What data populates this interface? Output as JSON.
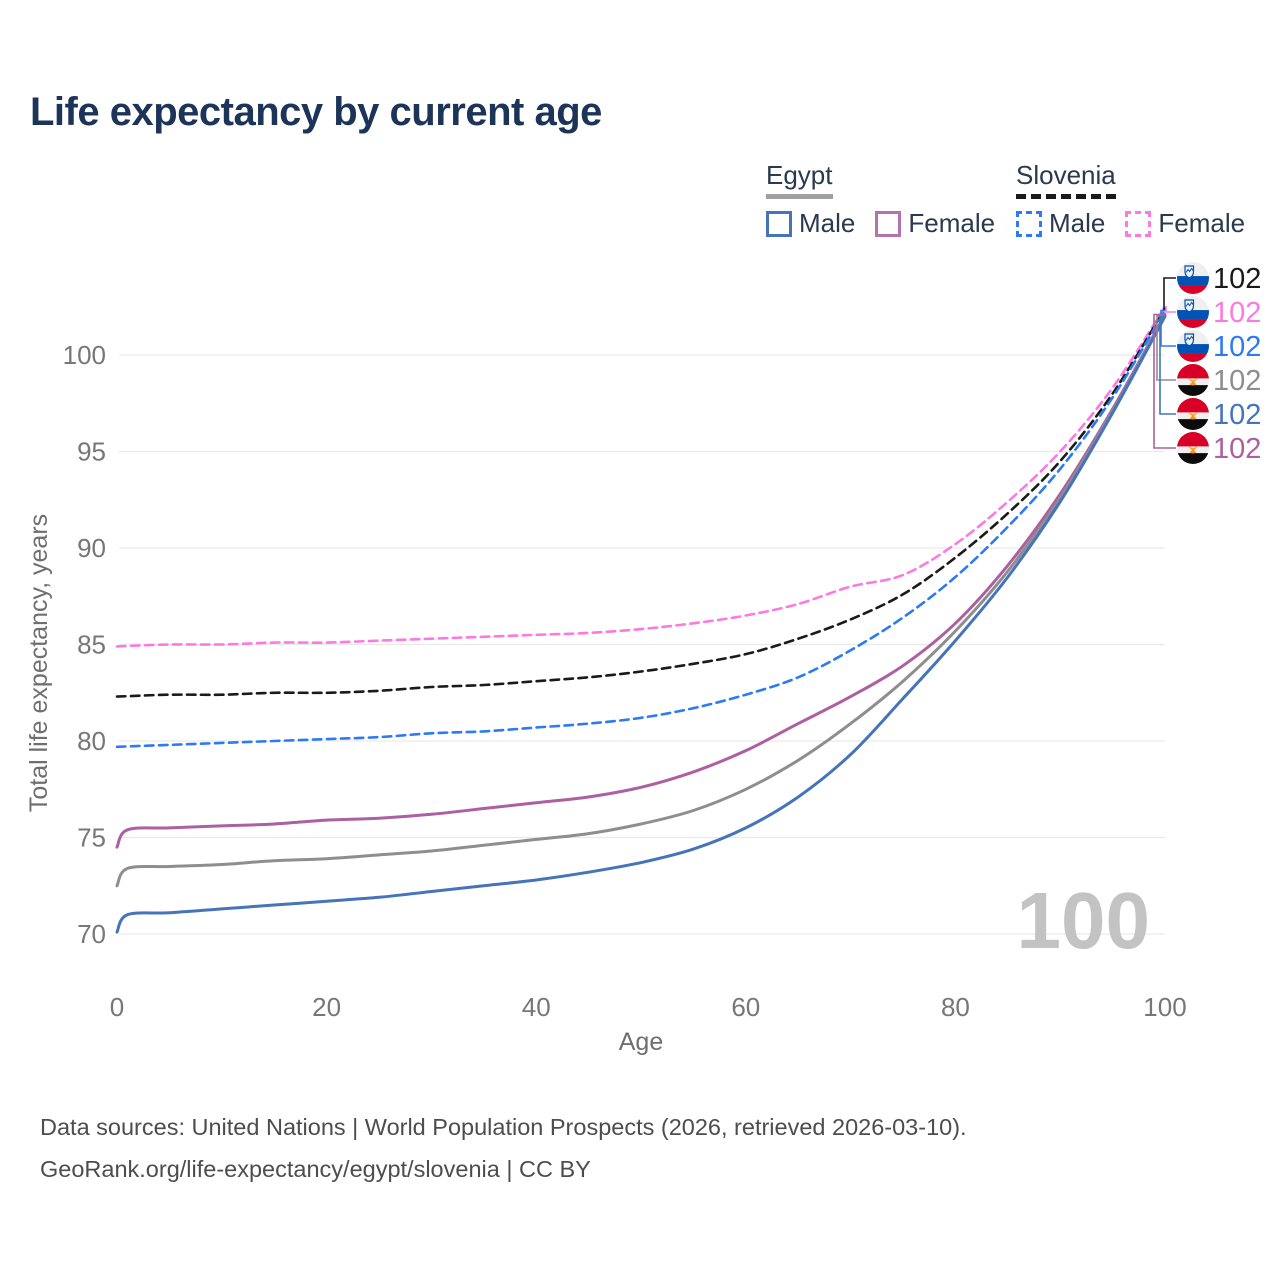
{
  "title": "Life expectancy by current age",
  "legend": {
    "groups": [
      {
        "country": "Egypt",
        "line_style": "solid",
        "series_color": "#a0a0a0",
        "items": [
          {
            "label": "Male",
            "color": "#4674ba",
            "style": "solid"
          },
          {
            "label": "Female",
            "color": "#b473ae",
            "style": "solid"
          }
        ]
      },
      {
        "country": "Slovenia",
        "line_style": "dashed",
        "series_color": "#1a1a1a",
        "items": [
          {
            "label": "Male",
            "color": "#2d7af5",
            "style": "dashed"
          },
          {
            "label": "Female",
            "color": "#fc7ae0",
            "style": "dashed"
          }
        ]
      }
    ]
  },
  "axes": {
    "y": {
      "title": "Total life expectancy, years",
      "ticks": [
        70,
        75,
        80,
        85,
        90,
        95,
        100
      ]
    },
    "x": {
      "title": "Age",
      "ticks": [
        0,
        20,
        40,
        60,
        80,
        100
      ]
    }
  },
  "watermark": "100",
  "chart_data": {
    "type": "line",
    "title": "Life expectancy by current age",
    "xlabel": "Age",
    "ylabel": "Total life expectancy, years",
    "xlim": [
      0,
      100
    ],
    "ylim": [
      70,
      103
    ],
    "grid": true,
    "legend_position": "top-right",
    "series": [
      {
        "id": "slovenia_female",
        "name": "Slovenia Female",
        "country": "Slovenia",
        "sex": "female",
        "color": "#fc7ae0",
        "dash": true,
        "points": [
          [
            0,
            84.9
          ],
          [
            5,
            85.0
          ],
          [
            10,
            85.0
          ],
          [
            15,
            85.1
          ],
          [
            20,
            85.1
          ],
          [
            25,
            85.2
          ],
          [
            30,
            85.3
          ],
          [
            35,
            85.4
          ],
          [
            40,
            85.5
          ],
          [
            45,
            85.6
          ],
          [
            50,
            85.8
          ],
          [
            55,
            86.1
          ],
          [
            60,
            86.5
          ],
          [
            65,
            87.1
          ],
          [
            70,
            88.0
          ],
          [
            75,
            88.6
          ],
          [
            80,
            90.2
          ],
          [
            85,
            92.4
          ],
          [
            90,
            95.0
          ],
          [
            95,
            98.3
          ],
          [
            100,
            102.5
          ]
        ]
      },
      {
        "id": "slovenia_total",
        "name": "Slovenia",
        "country": "Slovenia",
        "sex": "both",
        "color": "#1a1a1a",
        "dash": true,
        "points": [
          [
            0,
            82.3
          ],
          [
            5,
            82.4
          ],
          [
            10,
            82.4
          ],
          [
            15,
            82.5
          ],
          [
            20,
            82.5
          ],
          [
            25,
            82.6
          ],
          [
            30,
            82.8
          ],
          [
            35,
            82.9
          ],
          [
            40,
            83.1
          ],
          [
            45,
            83.3
          ],
          [
            50,
            83.6
          ],
          [
            55,
            84.0
          ],
          [
            60,
            84.5
          ],
          [
            65,
            85.3
          ],
          [
            70,
            86.3
          ],
          [
            75,
            87.6
          ],
          [
            80,
            89.5
          ],
          [
            85,
            91.8
          ],
          [
            90,
            94.5
          ],
          [
            95,
            98.0
          ],
          [
            100,
            102.4
          ]
        ]
      },
      {
        "id": "slovenia_male",
        "name": "Slovenia Male",
        "country": "Slovenia",
        "sex": "male",
        "color": "#2d7af5",
        "dash": true,
        "points": [
          [
            0,
            79.7
          ],
          [
            5,
            79.8
          ],
          [
            10,
            79.9
          ],
          [
            15,
            80.0
          ],
          [
            20,
            80.1
          ],
          [
            25,
            80.2
          ],
          [
            30,
            80.4
          ],
          [
            35,
            80.5
          ],
          [
            40,
            80.7
          ],
          [
            45,
            80.9
          ],
          [
            50,
            81.2
          ],
          [
            55,
            81.7
          ],
          [
            60,
            82.4
          ],
          [
            65,
            83.3
          ],
          [
            70,
            84.7
          ],
          [
            75,
            86.4
          ],
          [
            80,
            88.5
          ],
          [
            85,
            91.1
          ],
          [
            90,
            94.1
          ],
          [
            95,
            97.8
          ],
          [
            100,
            102.3
          ]
        ]
      },
      {
        "id": "egypt_female",
        "name": "Egypt Female",
        "country": "Egypt",
        "sex": "female",
        "color": "#ac60a1",
        "dash": false,
        "points": [
          [
            0,
            74.5
          ],
          [
            1,
            75.4
          ],
          [
            5,
            75.5
          ],
          [
            10,
            75.6
          ],
          [
            15,
            75.7
          ],
          [
            20,
            75.9
          ],
          [
            25,
            76.0
          ],
          [
            30,
            76.2
          ],
          [
            35,
            76.5
          ],
          [
            40,
            76.8
          ],
          [
            45,
            77.1
          ],
          [
            50,
            77.6
          ],
          [
            55,
            78.4
          ],
          [
            60,
            79.5
          ],
          [
            65,
            80.9
          ],
          [
            70,
            82.3
          ],
          [
            75,
            83.9
          ],
          [
            80,
            86.1
          ],
          [
            85,
            89.1
          ],
          [
            90,
            92.8
          ],
          [
            95,
            97.2
          ],
          [
            100,
            102.1
          ]
        ]
      },
      {
        "id": "egypt_total",
        "name": "Egypt",
        "country": "Egypt",
        "sex": "both",
        "color": "#8e8e8e",
        "dash": false,
        "points": [
          [
            0,
            72.5
          ],
          [
            1,
            73.4
          ],
          [
            5,
            73.5
          ],
          [
            10,
            73.6
          ],
          [
            15,
            73.8
          ],
          [
            20,
            73.9
          ],
          [
            25,
            74.1
          ],
          [
            30,
            74.3
          ],
          [
            35,
            74.6
          ],
          [
            40,
            74.9
          ],
          [
            45,
            75.2
          ],
          [
            50,
            75.7
          ],
          [
            55,
            76.4
          ],
          [
            60,
            77.5
          ],
          [
            65,
            79.0
          ],
          [
            70,
            80.9
          ],
          [
            75,
            83.1
          ],
          [
            80,
            85.7
          ],
          [
            85,
            88.8
          ],
          [
            90,
            92.6
          ],
          [
            95,
            97.1
          ],
          [
            100,
            102.05
          ]
        ]
      },
      {
        "id": "egypt_male",
        "name": "Egypt Male",
        "country": "Egypt",
        "sex": "male",
        "color": "#4674ba",
        "dash": false,
        "points": [
          [
            0,
            70.1
          ],
          [
            1,
            71.0
          ],
          [
            5,
            71.1
          ],
          [
            10,
            71.3
          ],
          [
            15,
            71.5
          ],
          [
            20,
            71.7
          ],
          [
            25,
            71.9
          ],
          [
            30,
            72.2
          ],
          [
            35,
            72.5
          ],
          [
            40,
            72.8
          ],
          [
            45,
            73.2
          ],
          [
            50,
            73.7
          ],
          [
            55,
            74.4
          ],
          [
            60,
            75.5
          ],
          [
            65,
            77.1
          ],
          [
            70,
            79.3
          ],
          [
            75,
            82.2
          ],
          [
            80,
            85.2
          ],
          [
            85,
            88.5
          ],
          [
            90,
            92.4
          ],
          [
            95,
            97.0
          ],
          [
            100,
            102.0
          ]
        ]
      }
    ]
  },
  "end_labels": [
    {
      "series": "slovenia_total",
      "flag": "slovenia",
      "value": "102",
      "color": "#1a1a1a"
    },
    {
      "series": "slovenia_female",
      "flag": "slovenia",
      "value": "102",
      "color": "#fc7ae0"
    },
    {
      "series": "slovenia_male",
      "flag": "slovenia",
      "value": "102",
      "color": "#2d7af5"
    },
    {
      "series": "egypt_total",
      "flag": "egypt",
      "value": "102",
      "color": "#8e8e8e"
    },
    {
      "series": "egypt_male",
      "flag": "egypt",
      "value": "102",
      "color": "#4674ba"
    },
    {
      "series": "egypt_female",
      "flag": "egypt",
      "value": "102",
      "color": "#ac60a1"
    }
  ],
  "footer": {
    "line1": "Data sources: United Nations | World Population Prospects (2026, retrieved 2026-03-10).",
    "line2": "GeoRank.org/life-expectancy/egypt/slovenia | CC BY"
  }
}
